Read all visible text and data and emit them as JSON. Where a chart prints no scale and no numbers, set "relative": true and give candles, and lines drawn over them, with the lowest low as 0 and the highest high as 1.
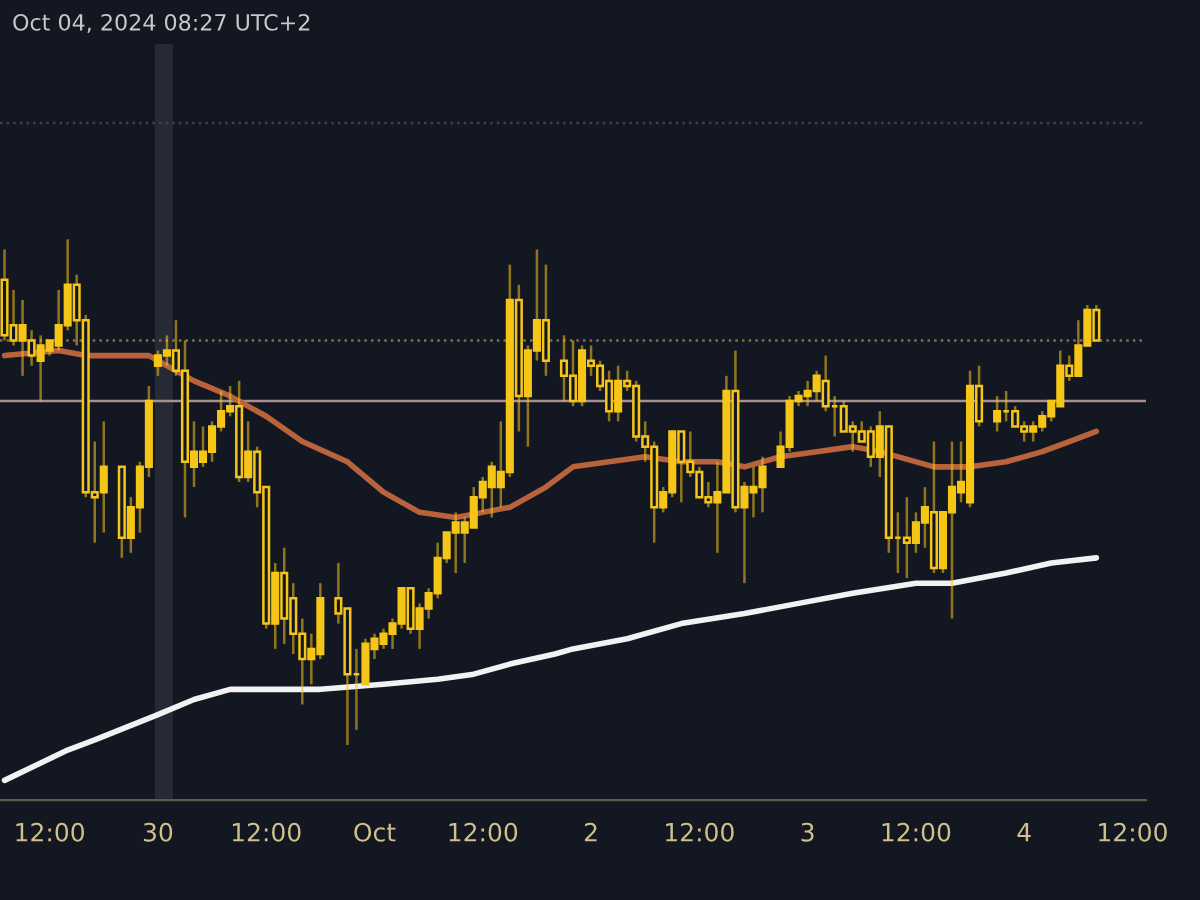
{
  "chart_data": {
    "type": "candlestick",
    "relative": true,
    "color": "#f5c518",
    "tick_labels": "x",
    "grid": false,
    "annotations": [
      "Oct 04, 2024 08:27 UTC+2"
    ],
    "x": [
      "2024-09-29T07:00",
      "2024-09-29T08:00",
      "2024-09-29T09:00",
      "2024-09-29T10:00",
      "2024-09-29T11:00",
      "2024-09-29T12:00",
      "2024-09-29T13:00",
      "2024-09-29T14:00",
      "2024-09-29T15:00",
      "2024-09-29T16:00",
      "2024-09-29T17:00",
      "2024-09-29T18:00",
      "2024-09-29T20:00",
      "2024-09-29T21:00",
      "2024-09-29T22:00",
      "2024-09-29T23:00",
      "2024-09-30T00:00",
      "2024-09-30T01:00",
      "2024-09-30T02:00",
      "2024-09-30T03:00",
      "2024-09-30T04:00",
      "2024-09-30T05:00",
      "2024-09-30T06:00",
      "2024-09-30T07:00",
      "2024-09-30T08:00",
      "2024-09-30T09:00",
      "2024-09-30T10:00",
      "2024-09-30T11:00",
      "2024-09-30T12:00",
      "2024-09-30T13:00",
      "2024-09-30T14:00",
      "2024-09-30T15:00",
      "2024-09-30T16:00",
      "2024-09-30T17:00",
      "2024-09-30T18:00",
      "2024-09-30T20:00",
      "2024-09-30T21:00",
      "2024-09-30T22:00",
      "2024-09-30T23:00",
      "2024-10-01T00:00",
      "2024-10-01T01:00",
      "2024-10-01T02:00",
      "2024-10-01T03:00",
      "2024-10-01T04:00",
      "2024-10-01T05:00",
      "2024-10-01T06:00",
      "2024-10-01T07:00",
      "2024-10-01T08:00",
      "2024-10-01T09:00",
      "2024-10-01T10:00",
      "2024-10-01T11:00",
      "2024-10-01T12:00",
      "2024-10-01T13:00",
      "2024-10-01T14:00",
      "2024-10-01T15:00",
      "2024-10-01T16:00",
      "2024-10-01T17:00",
      "2024-10-01T18:00",
      "2024-10-01T19:00",
      "2024-10-01T21:00",
      "2024-10-01T22:00",
      "2024-10-01T23:00",
      "2024-10-02T00:00",
      "2024-10-02T01:00",
      "2024-10-02T02:00",
      "2024-10-02T03:00",
      "2024-10-02T04:00",
      "2024-10-02T05:00",
      "2024-10-02T06:00",
      "2024-10-02T07:00",
      "2024-10-02T08:00",
      "2024-10-02T09:00",
      "2024-10-02T10:00",
      "2024-10-02T11:00",
      "2024-10-02T12:00",
      "2024-10-02T13:00",
      "2024-10-02T14:00",
      "2024-10-02T15:00",
      "2024-10-02T16:00",
      "2024-10-02T17:00",
      "2024-10-02T18:00",
      "2024-10-02T19:00",
      "2024-10-02T21:00",
      "2024-10-02T22:00",
      "2024-10-02T23:00",
      "2024-10-03T00:00",
      "2024-10-03T01:00",
      "2024-10-03T02:00",
      "2024-10-03T03:00",
      "2024-10-03T04:00",
      "2024-10-03T05:00",
      "2024-10-03T06:00",
      "2024-10-03T07:00",
      "2024-10-03T08:00",
      "2024-10-03T09:00",
      "2024-10-03T10:00",
      "2024-10-03T11:00",
      "2024-10-03T12:00",
      "2024-10-03T13:00",
      "2024-10-03T14:00",
      "2024-10-03T15:00",
      "2024-10-03T16:00",
      "2024-10-03T17:00",
      "2024-10-03T18:00",
      "2024-10-03T19:00",
      "2024-10-03T21:00",
      "2024-10-03T22:00",
      "2024-10-03T23:00",
      "2024-10-04T00:00",
      "2024-10-04T01:00",
      "2024-10-04T02:00",
      "2024-10-04T03:00",
      "2024-10-04T04:00",
      "2024-10-04T05:00",
      "2024-10-04T06:00",
      "2024-10-04T07:00",
      "2024-10-04T08:00"
    ],
    "ohlc": [
      [
        0.92,
        0.98,
        0.8,
        0.81
      ],
      [
        0.83,
        0.9,
        0.79,
        0.8
      ],
      [
        0.8,
        0.88,
        0.73,
        0.83
      ],
      [
        0.8,
        0.82,
        0.75,
        0.77
      ],
      [
        0.76,
        0.81,
        0.68,
        0.79
      ],
      [
        0.78,
        0.8,
        0.77,
        0.8
      ],
      [
        0.79,
        0.9,
        0.78,
        0.83
      ],
      [
        0.83,
        1.0,
        0.82,
        0.91
      ],
      [
        0.91,
        0.93,
        0.79,
        0.84
      ],
      [
        0.84,
        0.85,
        0.49,
        0.5
      ],
      [
        0.5,
        0.6,
        0.4,
        0.49
      ],
      [
        0.5,
        0.64,
        0.42,
        0.55
      ],
      [
        0.55,
        0.55,
        0.37,
        0.41
      ],
      [
        0.41,
        0.49,
        0.38,
        0.47
      ],
      [
        0.47,
        0.56,
        0.42,
        0.55
      ],
      [
        0.55,
        0.71,
        0.53,
        0.68
      ],
      [
        0.75,
        0.78,
        0.73,
        0.77
      ],
      [
        0.77,
        0.81,
        0.75,
        0.78
      ],
      [
        0.78,
        0.84,
        0.73,
        0.74
      ],
      [
        0.74,
        0.8,
        0.45,
        0.56
      ],
      [
        0.55,
        0.64,
        0.51,
        0.58
      ],
      [
        0.56,
        0.63,
        0.55,
        0.58
      ],
      [
        0.58,
        0.64,
        0.56,
        0.63
      ],
      [
        0.63,
        0.7,
        0.62,
        0.66
      ],
      [
        0.66,
        0.71,
        0.65,
        0.67
      ],
      [
        0.67,
        0.72,
        0.52,
        0.53
      ],
      [
        0.53,
        0.64,
        0.52,
        0.58
      ],
      [
        0.58,
        0.59,
        0.47,
        0.5
      ],
      [
        0.51,
        0.51,
        0.23,
        0.24
      ],
      [
        0.24,
        0.36,
        0.19,
        0.34
      ],
      [
        0.34,
        0.39,
        0.2,
        0.25
      ],
      [
        0.29,
        0.32,
        0.18,
        0.22
      ],
      [
        0.22,
        0.25,
        0.08,
        0.17
      ],
      [
        0.17,
        0.22,
        0.12,
        0.19
      ],
      [
        0.18,
        0.32,
        0.17,
        0.29
      ],
      [
        0.29,
        0.36,
        0.24,
        0.26
      ],
      [
        0.27,
        0.27,
        0.0,
        0.14
      ],
      [
        0.14,
        0.19,
        0.03,
        0.14
      ],
      [
        0.12,
        0.21,
        0.12,
        0.2
      ],
      [
        0.19,
        0.22,
        0.17,
        0.21
      ],
      [
        0.2,
        0.23,
        0.19,
        0.22
      ],
      [
        0.22,
        0.25,
        0.19,
        0.24
      ],
      [
        0.24,
        0.31,
        0.23,
        0.31
      ],
      [
        0.31,
        0.31,
        0.22,
        0.23
      ],
      [
        0.23,
        0.28,
        0.19,
        0.27
      ],
      [
        0.27,
        0.31,
        0.25,
        0.3
      ],
      [
        0.3,
        0.4,
        0.29,
        0.37
      ],
      [
        0.37,
        0.42,
        0.36,
        0.42
      ],
      [
        0.42,
        0.46,
        0.34,
        0.44
      ],
      [
        0.42,
        0.45,
        0.36,
        0.44
      ],
      [
        0.43,
        0.51,
        0.43,
        0.49
      ],
      [
        0.49,
        0.53,
        0.46,
        0.52
      ],
      [
        0.51,
        0.56,
        0.45,
        0.55
      ],
      [
        0.51,
        0.64,
        0.47,
        0.54
      ],
      [
        0.54,
        0.95,
        0.53,
        0.88
      ],
      [
        0.88,
        0.91,
        0.62,
        0.69
      ],
      [
        0.69,
        0.79,
        0.59,
        0.78
      ],
      [
        0.78,
        0.98,
        0.76,
        0.84
      ],
      [
        0.84,
        0.95,
        0.73,
        0.76
      ],
      [
        0.76,
        0.81,
        0.68,
        0.73
      ],
      [
        0.73,
        0.8,
        0.67,
        0.68
      ],
      [
        0.68,
        0.79,
        0.67,
        0.78
      ],
      [
        0.76,
        0.79,
        0.73,
        0.75
      ],
      [
        0.75,
        0.76,
        0.7,
        0.71
      ],
      [
        0.72,
        0.74,
        0.64,
        0.66
      ],
      [
        0.66,
        0.75,
        0.64,
        0.72
      ],
      [
        0.72,
        0.74,
        0.7,
        0.71
      ],
      [
        0.71,
        0.72,
        0.6,
        0.61
      ],
      [
        0.61,
        0.64,
        0.56,
        0.59
      ],
      [
        0.59,
        0.6,
        0.4,
        0.47
      ],
      [
        0.47,
        0.51,
        0.46,
        0.5
      ],
      [
        0.5,
        0.62,
        0.49,
        0.62
      ],
      [
        0.62,
        0.62,
        0.48,
        0.56
      ],
      [
        0.56,
        0.62,
        0.53,
        0.54
      ],
      [
        0.54,
        0.55,
        0.49,
        0.49
      ],
      [
        0.49,
        0.52,
        0.47,
        0.48
      ],
      [
        0.48,
        0.56,
        0.38,
        0.5
      ],
      [
        0.5,
        0.73,
        0.5,
        0.7
      ],
      [
        0.7,
        0.78,
        0.46,
        0.47
      ],
      [
        0.47,
        0.52,
        0.32,
        0.51
      ],
      [
        0.5,
        0.55,
        0.45,
        0.51
      ],
      [
        0.51,
        0.57,
        0.46,
        0.55
      ],
      [
        0.55,
        0.62,
        0.55,
        0.59
      ],
      [
        0.59,
        0.69,
        0.58,
        0.68
      ],
      [
        0.68,
        0.7,
        0.67,
        0.69
      ],
      [
        0.69,
        0.72,
        0.67,
        0.7
      ],
      [
        0.7,
        0.74,
        0.68,
        0.73
      ],
      [
        0.72,
        0.77,
        0.66,
        0.67
      ],
      [
        0.67,
        0.69,
        0.61,
        0.67
      ],
      [
        0.67,
        0.68,
        0.62,
        0.62
      ],
      [
        0.63,
        0.64,
        0.58,
        0.62
      ],
      [
        0.62,
        0.64,
        0.6,
        0.6
      ],
      [
        0.62,
        0.63,
        0.55,
        0.57
      ],
      [
        0.57,
        0.66,
        0.53,
        0.63
      ],
      [
        0.63,
        0.63,
        0.38,
        0.41
      ],
      [
        0.41,
        0.46,
        0.34,
        0.41
      ],
      [
        0.41,
        0.49,
        0.33,
        0.4
      ],
      [
        0.4,
        0.46,
        0.38,
        0.44
      ],
      [
        0.44,
        0.51,
        0.39,
        0.47
      ],
      [
        0.46,
        0.6,
        0.34,
        0.35
      ],
      [
        0.35,
        0.46,
        0.34,
        0.46
      ],
      [
        0.46,
        0.6,
        0.25,
        0.51
      ],
      [
        0.5,
        0.6,
        0.48,
        0.52
      ],
      [
        0.48,
        0.74,
        0.47,
        0.71
      ],
      [
        0.71,
        0.75,
        0.63,
        0.64
      ],
      [
        0.64,
        0.69,
        0.62,
        0.66
      ],
      [
        0.66,
        0.7,
        0.64,
        0.66
      ],
      [
        0.66,
        0.67,
        0.63,
        0.63
      ],
      [
        0.63,
        0.64,
        0.6,
        0.62
      ],
      [
        0.62,
        0.64,
        0.6,
        0.63
      ],
      [
        0.63,
        0.66,
        0.62,
        0.65
      ],
      [
        0.65,
        0.68,
        0.64,
        0.68
      ],
      [
        0.67,
        0.78,
        0.67,
        0.75
      ],
      [
        0.75,
        0.77,
        0.72,
        0.73
      ],
      [
        0.73,
        0.84,
        0.73,
        0.79
      ],
      [
        0.79,
        0.87,
        0.79,
        0.86
      ],
      [
        0.86,
        0.87,
        0.8,
        0.8
      ]
    ],
    "series": [
      {
        "type": "line",
        "color": "#b8633c",
        "x": [
          "2024-09-29T07:00",
          "2024-09-29T13:00",
          "2024-09-29T16:00",
          "2024-09-29T23:00",
          "2024-09-30T04:00",
          "2024-09-30T08:00",
          "2024-09-30T12:00",
          "2024-09-30T16:00",
          "2024-09-30T21:00",
          "2024-10-01T01:00",
          "2024-10-01T05:00",
          "2024-10-01T09:00",
          "2024-10-01T12:00",
          "2024-10-01T15:00",
          "2024-10-01T19:00",
          "2024-10-01T22:00",
          "2024-10-02T02:00",
          "2024-10-02T06:00",
          "2024-10-02T10:00",
          "2024-10-02T14:00",
          "2024-10-02T17:00",
          "2024-10-02T21:00",
          "2024-10-03T01:00",
          "2024-10-03T05:00",
          "2024-10-03T08:00",
          "2024-10-03T14:00",
          "2024-10-03T18:00",
          "2024-10-03T22:00",
          "2024-10-04T02:00",
          "2024-10-04T05:00",
          "2024-10-04T08:00"
        ],
        "values": [
          0.77,
          0.78,
          0.77,
          0.77,
          0.72,
          0.69,
          0.65,
          0.6,
          0.56,
          0.5,
          0.46,
          0.45,
          0.46,
          0.47,
          0.51,
          0.55,
          0.56,
          0.57,
          0.56,
          0.56,
          0.55,
          0.57,
          0.58,
          0.59,
          0.58,
          0.55,
          0.55,
          0.56,
          0.58,
          0.6,
          0.62
        ]
      },
      {
        "type": "line",
        "color": "#f2f2f2",
        "x": [
          "2024-09-29T07:00",
          "2024-09-29T14:00",
          "2024-09-29T17:00",
          "2024-09-30T00:00",
          "2024-09-30T04:00",
          "2024-09-30T08:00",
          "2024-09-30T14:00",
          "2024-09-30T18:00",
          "2024-10-01T01:00",
          "2024-10-01T07:00",
          "2024-10-01T11:00",
          "2024-10-01T15:00",
          "2024-10-01T20:00",
          "2024-10-01T22:00",
          "2024-10-02T04:00",
          "2024-10-02T10:00",
          "2024-10-02T17:00",
          "2024-10-02T23:00",
          "2024-10-03T05:00",
          "2024-10-03T12:00",
          "2024-10-03T16:00",
          "2024-10-03T22:00",
          "2024-10-04T03:00",
          "2024-10-04T08:00"
        ],
        "values": [
          -0.07,
          -0.01,
          0.01,
          0.06,
          0.09,
          0.11,
          0.11,
          0.11,
          0.12,
          0.13,
          0.14,
          0.16,
          0.18,
          0.19,
          0.21,
          0.24,
          0.26,
          0.28,
          0.3,
          0.32,
          0.32,
          0.34,
          0.36,
          0.37
        ]
      }
    ],
    "ref_lines": [
      {
        "axis": "y",
        "value": 1.23,
        "color": "#3d414c",
        "line_style": "dotted"
      },
      {
        "axis": "y",
        "value": 0.8,
        "color": "#8c6d3f",
        "line_style": "dotted"
      },
      {
        "axis": "y",
        "value": 0.68,
        "color": "#a88e8e",
        "line_style": "solid"
      }
    ],
    "bands": [
      {
        "axis": "x",
        "from": "2024-09-29T23:40",
        "to": "2024-09-30T01:40",
        "color": "#262a35"
      }
    ],
    "xlim": [
      "2024-09-29T06:30",
      "2024-10-04T13:30"
    ],
    "xticks": [
      {
        "value": "2024-09-29T12:00",
        "label": "12:00"
      },
      {
        "value": "2024-09-30T00:00",
        "label": "30"
      },
      {
        "value": "2024-09-30T12:00",
        "label": "12:00"
      },
      {
        "value": "2024-10-01T00:00",
        "label": "Oct"
      },
      {
        "value": "2024-10-01T12:00",
        "label": "12:00"
      },
      {
        "value": "2024-10-02T00:00",
        "label": "2"
      },
      {
        "value": "2024-10-02T12:00",
        "label": "12:00"
      },
      {
        "value": "2024-10-03T00:00",
        "label": "3"
      },
      {
        "value": "2024-10-03T12:00",
        "label": "12:00"
      },
      {
        "value": "2024-10-04T00:00",
        "label": "4"
      },
      {
        "value": "2024-10-04T12:00",
        "label": "12:00"
      }
    ]
  }
}
